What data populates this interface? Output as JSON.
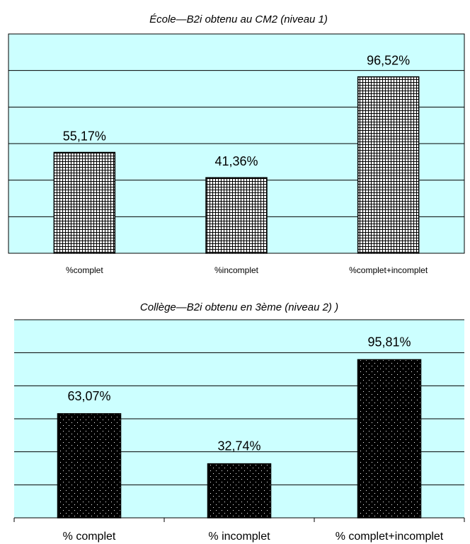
{
  "chart_data": [
    {
      "type": "bar",
      "title": "École—B2i obtenu au CM2 (niveau 1)",
      "categories": [
        "%complet",
        "%incomplet",
        "%complet+incomplet"
      ],
      "values": [
        55.17,
        41.36,
        96.52
      ],
      "value_labels": [
        "55,17%",
        "41,36%",
        "96,52%"
      ],
      "ylim": [
        0,
        120
      ],
      "grid": true,
      "bar_pattern": "grid-hatch",
      "plot_background": "#ccffff",
      "xlabel": "",
      "ylabel": ""
    },
    {
      "type": "bar",
      "title": "Collège—B2i obtenu en 3ème (niveau 2) )",
      "categories": [
        "% complet",
        "% incomplet",
        "% complet+incomplet"
      ],
      "values": [
        63.07,
        32.74,
        95.81
      ],
      "value_labels": [
        "63,07%",
        "32,74%",
        "95,81%"
      ],
      "ylim": [
        0,
        120
      ],
      "grid": true,
      "bar_pattern": "dotted-black",
      "plot_background": "#ccffff",
      "xlabel": "",
      "ylabel": ""
    }
  ]
}
